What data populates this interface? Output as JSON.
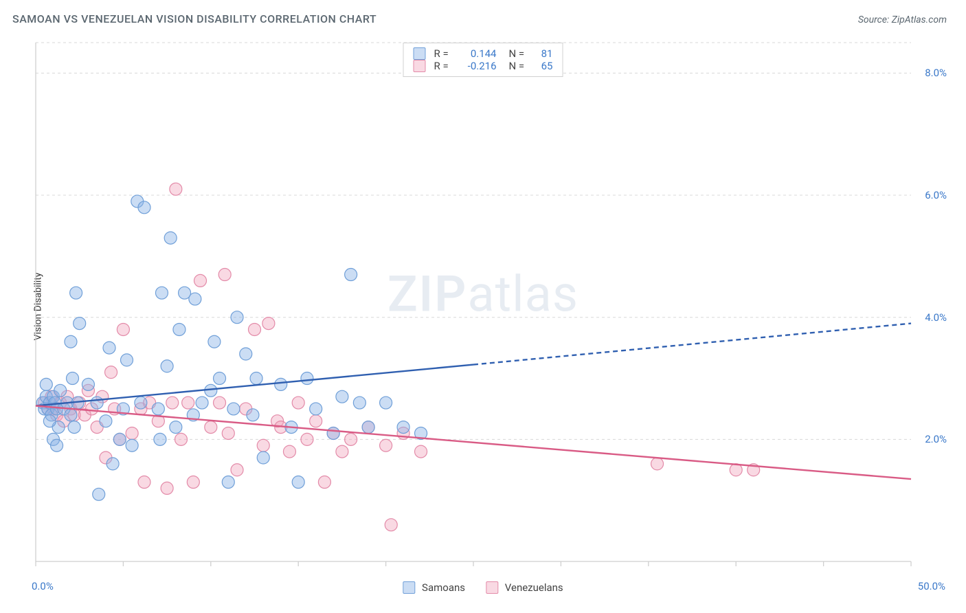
{
  "header": {
    "title": "SAMOAN VS VENEZUELAN VISION DISABILITY CORRELATION CHART",
    "source": "Source: ZipAtlas.com"
  },
  "ylabel": "Vision Disability",
  "watermark": {
    "part1": "ZIP",
    "part2": "atlas"
  },
  "chart": {
    "type": "scatter",
    "xlim": [
      0,
      50
    ],
    "ylim": [
      0,
      8.5
    ],
    "xtick_positions": [
      0,
      5,
      10,
      15,
      20,
      25,
      30,
      35,
      40,
      45,
      50
    ],
    "ytick_positions": [
      2,
      4,
      6,
      8
    ],
    "ytick_labels": [
      "2.0%",
      "4.0%",
      "6.0%",
      "8.0%"
    ],
    "xtick_left_label": "0.0%",
    "xtick_right_label": "50.0%",
    "grid_color": "#d8d8d8",
    "axis_color": "#cfcfcf",
    "background_color": "#ffffff",
    "marker_radius": 9,
    "marker_stroke_width": 1.2,
    "line_width": 2.4,
    "dash_pattern": "7 5"
  },
  "series": {
    "samoans": {
      "label": "Samoans",
      "color_fill": "rgba(140,180,230,0.45)",
      "color_stroke": "#6f9fd8",
      "line_color": "#2f5fb0",
      "R": "0.144",
      "N": "81",
      "regression": {
        "y_at_x0": 2.55,
        "y_at_x50": 3.9,
        "solid_until_x": 25
      },
      "points": [
        [
          0.4,
          2.6
        ],
        [
          0.5,
          2.5
        ],
        [
          0.6,
          2.7
        ],
        [
          0.7,
          2.5
        ],
        [
          0.8,
          2.6
        ],
        [
          0.9,
          2.4
        ],
        [
          1.0,
          2.7
        ],
        [
          1.1,
          2.6
        ],
        [
          1.2,
          2.5
        ],
        [
          1.3,
          2.2
        ],
        [
          1.4,
          2.8
        ],
        [
          1.6,
          2.5
        ],
        [
          1.8,
          2.6
        ],
        [
          2.0,
          2.4
        ],
        [
          2.2,
          2.2
        ],
        [
          2.4,
          2.6
        ],
        [
          0.6,
          2.9
        ],
        [
          0.8,
          2.3
        ],
        [
          1.0,
          2.0
        ],
        [
          1.2,
          1.9
        ],
        [
          2.0,
          3.6
        ],
        [
          2.1,
          3.0
        ],
        [
          2.3,
          4.4
        ],
        [
          2.5,
          3.9
        ],
        [
          3.0,
          2.9
        ],
        [
          3.5,
          2.6
        ],
        [
          3.6,
          1.1
        ],
        [
          4.0,
          2.3
        ],
        [
          4.2,
          3.5
        ],
        [
          4.4,
          1.6
        ],
        [
          4.8,
          2.0
        ],
        [
          5.0,
          2.5
        ],
        [
          5.2,
          3.3
        ],
        [
          5.5,
          1.9
        ],
        [
          5.8,
          5.9
        ],
        [
          6.0,
          2.6
        ],
        [
          6.2,
          5.8
        ],
        [
          7.0,
          2.5
        ],
        [
          7.1,
          2.0
        ],
        [
          7.2,
          4.4
        ],
        [
          7.5,
          3.2
        ],
        [
          7.7,
          5.3
        ],
        [
          8.0,
          2.2
        ],
        [
          8.2,
          3.8
        ],
        [
          8.5,
          4.4
        ],
        [
          9.0,
          2.4
        ],
        [
          9.1,
          4.3
        ],
        [
          9.5,
          2.6
        ],
        [
          10.0,
          2.8
        ],
        [
          10.2,
          3.6
        ],
        [
          10.5,
          3.0
        ],
        [
          11.0,
          1.3
        ],
        [
          11.3,
          2.5
        ],
        [
          11.5,
          4.0
        ],
        [
          12.0,
          3.4
        ],
        [
          12.4,
          2.4
        ],
        [
          12.6,
          3.0
        ],
        [
          13.0,
          1.7
        ],
        [
          14.0,
          2.9
        ],
        [
          14.6,
          2.2
        ],
        [
          15.0,
          1.3
        ],
        [
          15.5,
          3.0
        ],
        [
          16.0,
          2.5
        ],
        [
          17.0,
          2.1
        ],
        [
          17.5,
          2.7
        ],
        [
          18.0,
          4.7
        ],
        [
          18.5,
          2.6
        ],
        [
          19.0,
          2.2
        ],
        [
          20.0,
          2.6
        ],
        [
          21.0,
          2.2
        ],
        [
          22.0,
          2.1
        ]
      ]
    },
    "venezuelans": {
      "label": "Venezuelans",
      "color_fill": "rgba(240,160,185,0.40)",
      "color_stroke": "#e38aa8",
      "line_color": "#d95b85",
      "R": "-0.216",
      "N": "65",
      "regression": {
        "y_at_x0": 2.55,
        "y_at_x50": 1.35,
        "solid_until_x": 50
      },
      "points": [
        [
          0.5,
          2.6
        ],
        [
          0.7,
          2.5
        ],
        [
          0.9,
          2.7
        ],
        [
          1.0,
          2.5
        ],
        [
          1.2,
          2.4
        ],
        [
          1.4,
          2.6
        ],
        [
          1.6,
          2.3
        ],
        [
          1.8,
          2.7
        ],
        [
          2.0,
          2.5
        ],
        [
          2.2,
          2.4
        ],
        [
          2.5,
          2.6
        ],
        [
          2.8,
          2.4
        ],
        [
          3.0,
          2.8
        ],
        [
          3.2,
          2.5
        ],
        [
          3.5,
          2.2
        ],
        [
          3.8,
          2.7
        ],
        [
          4.0,
          1.7
        ],
        [
          4.3,
          3.1
        ],
        [
          4.5,
          2.5
        ],
        [
          4.8,
          2.0
        ],
        [
          5.0,
          3.8
        ],
        [
          5.5,
          2.1
        ],
        [
          6.0,
          2.5
        ],
        [
          6.2,
          1.3
        ],
        [
          6.5,
          2.6
        ],
        [
          7.0,
          2.3
        ],
        [
          7.5,
          1.2
        ],
        [
          7.8,
          2.6
        ],
        [
          8.0,
          6.1
        ],
        [
          8.3,
          2.0
        ],
        [
          8.7,
          2.6
        ],
        [
          9.0,
          1.3
        ],
        [
          9.4,
          4.6
        ],
        [
          10.0,
          2.2
        ],
        [
          10.5,
          2.6
        ],
        [
          10.8,
          4.7
        ],
        [
          11.0,
          2.1
        ],
        [
          11.5,
          1.5
        ],
        [
          12.0,
          2.5
        ],
        [
          12.5,
          3.8
        ],
        [
          13.0,
          1.9
        ],
        [
          13.3,
          3.9
        ],
        [
          13.8,
          2.3
        ],
        [
          14.0,
          2.2
        ],
        [
          14.5,
          1.8
        ],
        [
          15.0,
          2.6
        ],
        [
          15.5,
          2.0
        ],
        [
          16.0,
          2.3
        ],
        [
          16.5,
          1.3
        ],
        [
          17.0,
          2.1
        ],
        [
          17.5,
          1.8
        ],
        [
          18.0,
          2.0
        ],
        [
          19.0,
          2.2
        ],
        [
          20.0,
          1.9
        ],
        [
          20.3,
          0.6
        ],
        [
          21.0,
          2.1
        ],
        [
          22.0,
          1.8
        ],
        [
          35.5,
          1.6
        ],
        [
          40.0,
          1.5
        ],
        [
          41.0,
          1.5
        ]
      ]
    }
  },
  "legend_bottom": {
    "item1": "Samoans",
    "item2": "Venezuelans"
  }
}
